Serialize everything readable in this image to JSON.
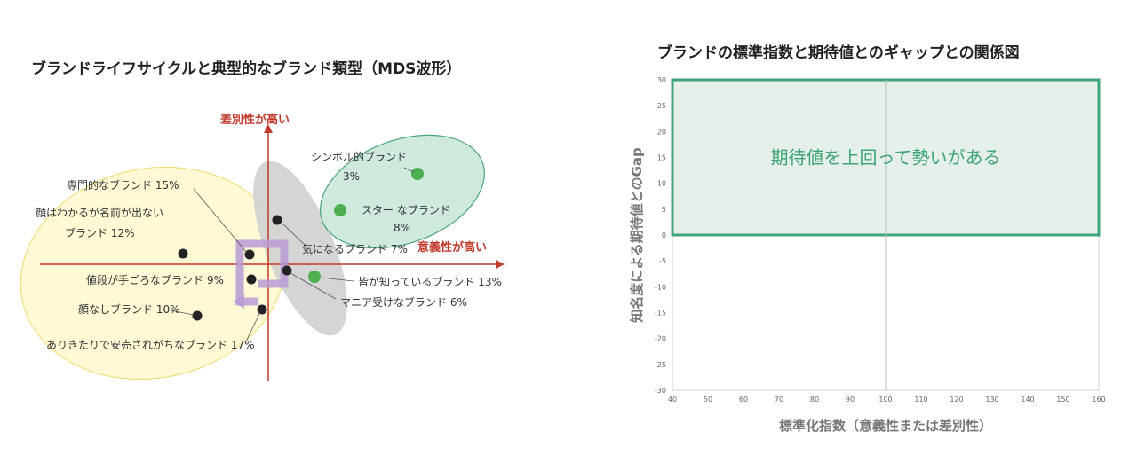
{
  "left": {
    "title": "ブランドライフサイクルと典型的なブランド類型（MDS波形）",
    "axis_y_high": "差別性が高い",
    "axis_x_high": "意義性が高い",
    "brands": [
      {
        "name": "シンボル的ブランド",
        "share": "3%",
        "color": "#4caf50"
      },
      {
        "name": "スター なブランド",
        "share": "8%",
        "color": "#4caf50"
      },
      {
        "name": "気になるブランド 7%",
        "share": "",
        "color": "#333333"
      },
      {
        "name": "皆が知っているブランド 13%",
        "share": "",
        "color": "#4caf50"
      },
      {
        "name": "マニア受けなブランド 6%",
        "share": "",
        "color": "#333333"
      },
      {
        "name": "専門的なブランド 15%",
        "share": "",
        "color": "#333333"
      },
      {
        "name": "顔はわかるが名前が出ない",
        "share": "ブランド 12%",
        "color": "#333333"
      },
      {
        "name": "値段が手ごろなブランド 9%",
        "share": "",
        "color": "#333333"
      },
      {
        "name": "顔なしブランド 10%",
        "share": "",
        "color": "#333333"
      },
      {
        "name": "ありきたりで安売されがちなブランド 17%",
        "share": "",
        "color": "#333333"
      }
    ]
  },
  "right": {
    "title": "ブランドの標準指数と期待値とのギャップとの関係図",
    "quadrant_text": "期待値を上回って勢いがある",
    "xlabel": "標準化指数（意義性または差別性）",
    "ylabel": "知名度による期待値とのGap",
    "colors": {
      "accent": "#3fa477",
      "fill": "#e6f0ea"
    }
  },
  "chart_data": {
    "type": "scatter",
    "title": "ブランドの標準指数と期待値とのギャップとの関係図",
    "xlabel": "標準化指数（意義性または差別性）",
    "ylabel": "知名度による期待値とのGap",
    "xlim": [
      40,
      160
    ],
    "ylim": [
      -30,
      30
    ],
    "x_ticks": [
      40,
      50,
      60,
      70,
      80,
      90,
      100,
      110,
      120,
      130,
      140,
      150,
      160
    ],
    "y_ticks": [
      30,
      25,
      20,
      15,
      10,
      5,
      0,
      -5,
      -10,
      -15,
      -20,
      -25,
      -30
    ],
    "highlight_region": {
      "x": [
        40,
        160
      ],
      "y": [
        0,
        30
      ],
      "label": "期待値を上回って勢いがある"
    },
    "series": []
  }
}
